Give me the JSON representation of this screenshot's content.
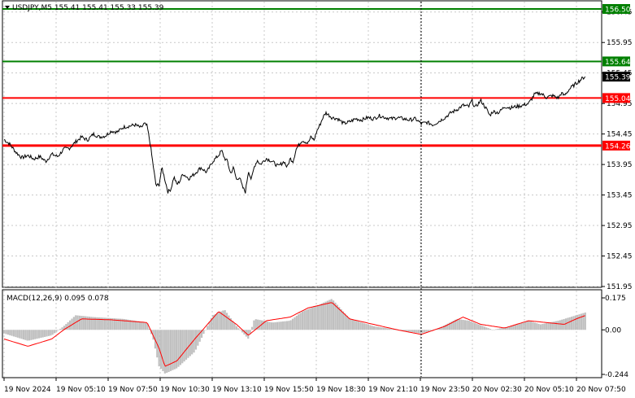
{
  "header": {
    "symbol_line": "USDJPY,M5  155.41 155.41 155.33 155.39",
    "macd_label": "MACD(12,26,9) 0.095 0.078"
  },
  "chart_data": [
    {
      "type": "line",
      "title": "USDJPY,M5",
      "ohlc": {
        "open": 155.41,
        "high": 155.41,
        "low": 155.33,
        "close": 155.39
      },
      "x_ticks": [
        "19 Nov 2024",
        "19 Nov 05:10",
        "19 Nov 07:50",
        "19 Nov 10:30",
        "19 Nov 13:10",
        "19 Nov 15:50",
        "19 Nov 18:30",
        "19 Nov 21:10",
        "19 Nov 23:50",
        "20 Nov 02:30",
        "20 Nov 05:10",
        "20 Nov 07:50"
      ],
      "y_ticks": [
        "156.45",
        "155.95",
        "155.45",
        "154.95",
        "154.45",
        "153.95",
        "153.45",
        "152.95",
        "152.45",
        "151.95"
      ],
      "ylim": [
        151.95,
        156.62
      ],
      "grid": true,
      "price_path": [
        [
          0,
          154.36
        ],
        [
          0.01,
          154.28
        ],
        [
          0.02,
          154.15
        ],
        [
          0.03,
          154.06
        ],
        [
          0.04,
          154.1
        ],
        [
          0.05,
          154.04
        ],
        [
          0.06,
          154.08
        ],
        [
          0.07,
          154.0
        ],
        [
          0.08,
          154.12
        ],
        [
          0.09,
          154.08
        ],
        [
          0.1,
          154.2
        ],
        [
          0.11,
          154.22
        ],
        [
          0.12,
          154.32
        ],
        [
          0.13,
          154.4
        ],
        [
          0.14,
          154.35
        ],
        [
          0.15,
          154.45
        ],
        [
          0.16,
          154.4
        ],
        [
          0.17,
          154.42
        ],
        [
          0.18,
          154.5
        ],
        [
          0.19,
          154.48
        ],
        [
          0.2,
          154.56
        ],
        [
          0.21,
          154.58
        ],
        [
          0.22,
          154.6
        ],
        [
          0.23,
          154.55
        ],
        [
          0.235,
          154.62
        ],
        [
          0.24,
          154.58
        ],
        [
          0.245,
          154.3
        ],
        [
          0.25,
          153.95
        ],
        [
          0.255,
          153.6
        ],
        [
          0.26,
          153.62
        ],
        [
          0.265,
          153.9
        ],
        [
          0.27,
          153.7
        ],
        [
          0.275,
          153.5
        ],
        [
          0.28,
          153.55
        ],
        [
          0.285,
          153.75
        ],
        [
          0.29,
          153.62
        ],
        [
          0.295,
          153.68
        ],
        [
          0.3,
          153.8
        ],
        [
          0.31,
          153.72
        ],
        [
          0.32,
          153.8
        ],
        [
          0.33,
          153.9
        ],
        [
          0.34,
          153.82
        ],
        [
          0.35,
          154.0
        ],
        [
          0.36,
          154.1
        ],
        [
          0.365,
          154.18
        ],
        [
          0.37,
          154.05
        ],
        [
          0.375,
          154.0
        ],
        [
          0.38,
          153.8
        ],
        [
          0.385,
          153.9
        ],
        [
          0.39,
          153.7
        ],
        [
          0.395,
          153.75
        ],
        [
          0.4,
          153.58
        ],
        [
          0.405,
          153.5
        ],
        [
          0.41,
          153.85
        ],
        [
          0.415,
          153.7
        ],
        [
          0.42,
          153.92
        ],
        [
          0.425,
          154.02
        ],
        [
          0.43,
          153.95
        ],
        [
          0.44,
          154.05
        ],
        [
          0.45,
          154.0
        ],
        [
          0.46,
          153.92
        ],
        [
          0.47,
          154.0
        ],
        [
          0.475,
          153.9
        ],
        [
          0.48,
          154.05
        ],
        [
          0.485,
          154.0
        ],
        [
          0.49,
          154.2
        ],
        [
          0.5,
          154.35
        ],
        [
          0.51,
          154.3
        ],
        [
          0.515,
          154.4
        ],
        [
          0.52,
          154.35
        ],
        [
          0.525,
          154.5
        ],
        [
          0.53,
          154.6
        ],
        [
          0.535,
          154.72
        ],
        [
          0.54,
          154.8
        ],
        [
          0.55,
          154.72
        ],
        [
          0.56,
          154.7
        ],
        [
          0.57,
          154.62
        ],
        [
          0.58,
          154.65
        ],
        [
          0.59,
          154.7
        ],
        [
          0.6,
          154.68
        ],
        [
          0.61,
          154.72
        ],
        [
          0.62,
          154.7
        ],
        [
          0.63,
          154.75
        ],
        [
          0.64,
          154.72
        ],
        [
          0.65,
          154.7
        ],
        [
          0.66,
          154.72
        ],
        [
          0.67,
          154.7
        ],
        [
          0.68,
          154.68
        ],
        [
          0.69,
          154.7
        ],
        [
          0.7,
          154.62
        ],
        [
          0.71,
          154.64
        ],
        [
          0.72,
          154.6
        ],
        [
          0.73,
          154.66
        ],
        [
          0.74,
          154.72
        ],
        [
          0.75,
          154.8
        ],
        [
          0.76,
          154.85
        ],
        [
          0.77,
          154.92
        ],
        [
          0.78,
          154.9
        ],
        [
          0.785,
          155.0
        ],
        [
          0.79,
          154.88
        ],
        [
          0.8,
          155.0
        ],
        [
          0.81,
          154.85
        ],
        [
          0.815,
          154.75
        ],
        [
          0.82,
          154.82
        ],
        [
          0.83,
          154.8
        ],
        [
          0.84,
          154.9
        ],
        [
          0.85,
          154.88
        ],
        [
          0.86,
          154.9
        ],
        [
          0.87,
          154.92
        ],
        [
          0.88,
          154.95
        ],
        [
          0.885,
          155.02
        ],
        [
          0.89,
          155.1
        ],
        [
          0.9,
          155.12
        ],
        [
          0.91,
          155.05
        ],
        [
          0.92,
          155.08
        ],
        [
          0.93,
          155.04
        ],
        [
          0.935,
          155.12
        ],
        [
          0.94,
          155.08
        ],
        [
          0.95,
          155.2
        ],
        [
          0.96,
          155.28
        ],
        [
          0.97,
          155.36
        ],
        [
          0.975,
          155.39
        ]
      ],
      "levels": [
        {
          "price": 156.5,
          "label": "156.50",
          "color": "#008000"
        },
        {
          "price": 155.64,
          "label": "155.64",
          "color": "#008000"
        },
        {
          "price": 155.39,
          "label": "155.39",
          "color": "#000000"
        },
        {
          "price": 155.04,
          "label": "155.04",
          "color": "#ff0000"
        },
        {
          "price": 154.26,
          "label": "154.26",
          "color": "#ff0000"
        }
      ]
    },
    {
      "type": "bar",
      "title": "MACD(12,26,9)",
      "ylim": [
        -0.244,
        0.175
      ],
      "y_ticks": [
        "0.175",
        "0.00",
        "-0.244"
      ],
      "macd_profile": [
        [
          0,
          -0.02
        ],
        [
          0.04,
          -0.06
        ],
        [
          0.08,
          -0.03
        ],
        [
          0.1,
          0.02
        ],
        [
          0.12,
          0.08
        ],
        [
          0.15,
          0.07
        ],
        [
          0.2,
          0.06
        ],
        [
          0.24,
          0.04
        ],
        [
          0.25,
          -0.05
        ],
        [
          0.26,
          -0.2
        ],
        [
          0.27,
          -0.24
        ],
        [
          0.29,
          -0.21
        ],
        [
          0.32,
          -0.12
        ],
        [
          0.35,
          0.08
        ],
        [
          0.37,
          0.11
        ],
        [
          0.39,
          0.02
        ],
        [
          0.41,
          -0.05
        ],
        [
          0.42,
          0.06
        ],
        [
          0.45,
          0.04
        ],
        [
          0.48,
          0.05
        ],
        [
          0.5,
          0.1
        ],
        [
          0.53,
          0.14
        ],
        [
          0.55,
          0.17
        ],
        [
          0.58,
          0.06
        ],
        [
          0.62,
          0.02
        ],
        [
          0.66,
          0.0
        ],
        [
          0.7,
          -0.02
        ],
        [
          0.73,
          0.01
        ],
        [
          0.76,
          0.06
        ],
        [
          0.78,
          0.05
        ],
        [
          0.82,
          0.0
        ],
        [
          0.85,
          0.02
        ],
        [
          0.88,
          0.05
        ],
        [
          0.9,
          0.03
        ],
        [
          0.93,
          0.05
        ],
        [
          0.96,
          0.08
        ],
        [
          0.975,
          0.095
        ]
      ],
      "signal_profile": [
        [
          0,
          -0.05
        ],
        [
          0.04,
          -0.09
        ],
        [
          0.08,
          -0.05
        ],
        [
          0.1,
          0.0
        ],
        [
          0.13,
          0.06
        ],
        [
          0.18,
          0.055
        ],
        [
          0.24,
          0.04
        ],
        [
          0.26,
          -0.1
        ],
        [
          0.27,
          -0.2
        ],
        [
          0.29,
          -0.17
        ],
        [
          0.32,
          -0.05
        ],
        [
          0.36,
          0.1
        ],
        [
          0.39,
          0.03
        ],
        [
          0.41,
          -0.03
        ],
        [
          0.44,
          0.05
        ],
        [
          0.48,
          0.07
        ],
        [
          0.51,
          0.12
        ],
        [
          0.55,
          0.15
        ],
        [
          0.58,
          0.06
        ],
        [
          0.62,
          0.03
        ],
        [
          0.66,
          0.0
        ],
        [
          0.7,
          -0.025
        ],
        [
          0.74,
          0.02
        ],
        [
          0.77,
          0.07
        ],
        [
          0.8,
          0.03
        ],
        [
          0.84,
          0.01
        ],
        [
          0.88,
          0.05
        ],
        [
          0.91,
          0.04
        ],
        [
          0.94,
          0.03
        ],
        [
          0.96,
          0.06
        ],
        [
          0.975,
          0.078
        ]
      ]
    }
  ]
}
